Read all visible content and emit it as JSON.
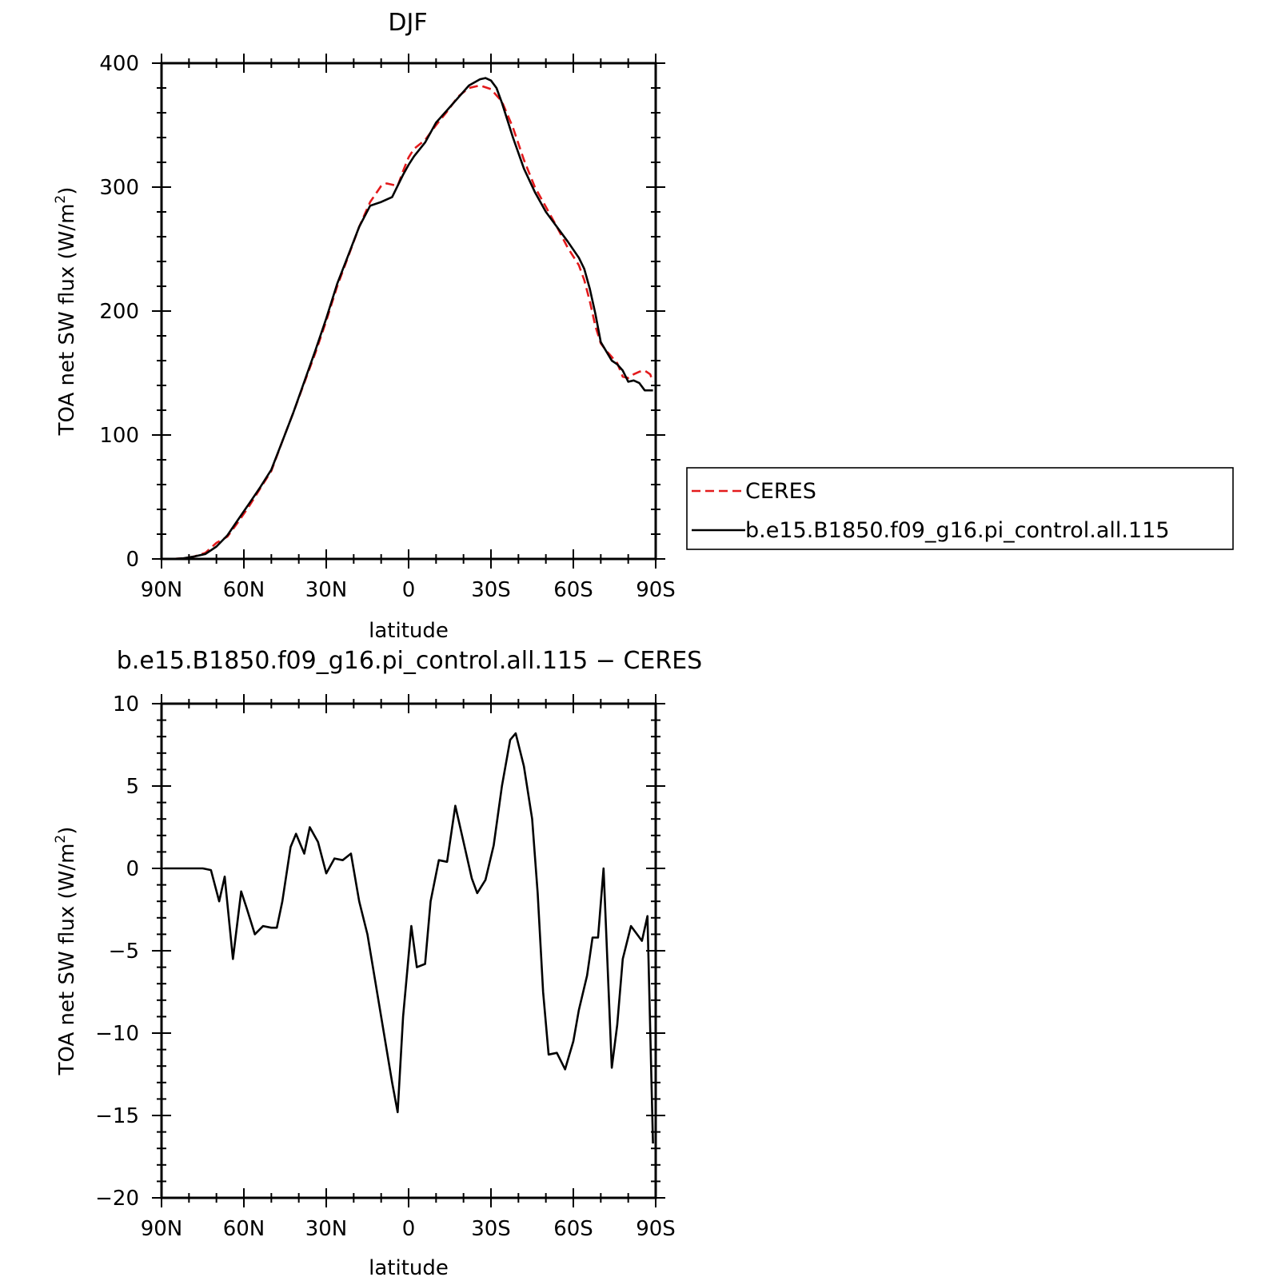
{
  "chart_data": [
    {
      "type": "line",
      "title": "DJF",
      "xlabel": "latitude",
      "ylabel": "TOA net SW flux (W/m²)",
      "ylabel_parts": {
        "main": "TOA net SW flux (W/m",
        "sup": "2",
        "close": ")"
      },
      "x_direction": "north-to-south",
      "xlim": [
        90,
        -90
      ],
      "ylim": [
        0,
        400
      ],
      "xticks": [
        90,
        60,
        30,
        0,
        -30,
        -60,
        -90
      ],
      "xtick_labels": [
        "90N",
        "60N",
        "30N",
        "0",
        "30S",
        "60S",
        "90S"
      ],
      "yticks": [
        0,
        100,
        200,
        300,
        400
      ],
      "ytick_labels": [
        "0",
        "100",
        "200",
        "300",
        "400"
      ],
      "grid": false,
      "legend_position": "outside-right",
      "series": [
        {
          "name": "CERES",
          "color": "#e31a1c",
          "dash": "dashed",
          "x": [
            90,
            86,
            82,
            78,
            74,
            70,
            66,
            62,
            58,
            54,
            50,
            46,
            42,
            38,
            34,
            30,
            26,
            22,
            18,
            14,
            10,
            8,
            4,
            2,
            0,
            -2,
            -6,
            -10,
            -14,
            -18,
            -22,
            -26,
            -30,
            -34,
            -38,
            -42,
            -46,
            -50,
            -54,
            -58,
            -62,
            -64,
            -66,
            -68,
            -70,
            -72,
            -76,
            -78,
            -80,
            -82,
            -84,
            -86,
            -88,
            -89
          ],
          "values": [
            0,
            0,
            0.5,
            2,
            5,
            13,
            18,
            30,
            43,
            57,
            71,
            95,
            118,
            142,
            166,
            192,
            220,
            244,
            268,
            288,
            301,
            303,
            301,
            313,
            324,
            331,
            338,
            350,
            361,
            373,
            380,
            382,
            379,
            369,
            348,
            322,
            300,
            284,
            268,
            251,
            237,
            225,
            208,
            188,
            174,
            168,
            158,
            147,
            146,
            149,
            151,
            152,
            149,
            143
          ]
        },
        {
          "name": "b.e15.B1850.f09_g16.pi_control.all.115",
          "color": "#000000",
          "dash": "solid",
          "x": [
            90,
            86,
            82,
            78,
            74,
            70,
            66,
            62,
            58,
            54,
            50,
            46,
            42,
            38,
            34,
            30,
            26,
            22,
            18,
            14,
            10,
            6,
            2,
            0,
            -2,
            -6,
            -10,
            -14,
            -18,
            -22,
            -26,
            -28,
            -30,
            -32,
            -34,
            -38,
            -42,
            -46,
            -50,
            -54,
            -58,
            -62,
            -64,
            -66,
            -68,
            -70,
            -74,
            -76,
            -78,
            -80,
            -82,
            -84,
            -86,
            -88,
            -89
          ],
          "values": [
            0,
            0,
            0.5,
            2,
            4,
            10,
            19,
            32,
            45,
            58,
            72,
            95,
            118,
            143,
            168,
            194,
            222,
            245,
            268,
            285,
            288,
            292,
            310,
            318,
            325,
            336,
            352,
            362,
            372,
            382,
            387,
            388,
            386,
            380,
            368,
            340,
            315,
            296,
            280,
            268,
            256,
            243,
            234,
            218,
            198,
            175,
            160,
            157,
            152,
            143,
            144,
            142,
            136,
            136,
            136
          ]
        }
      ]
    },
    {
      "type": "line",
      "title": "b.e15.B1850.f09_g16.pi_control.all.115 − CERES",
      "xlabel": "latitude",
      "ylabel": "TOA net SW flux (W/m²)",
      "ylabel_parts": {
        "main": "TOA net SW flux (W/m",
        "sup": "2",
        "close": ")"
      },
      "x_direction": "north-to-south",
      "xlim": [
        90,
        -90
      ],
      "ylim": [
        -20,
        10
      ],
      "xticks": [
        90,
        60,
        30,
        0,
        -30,
        -60,
        -90
      ],
      "xtick_labels": [
        "90N",
        "60N",
        "30N",
        "0",
        "30S",
        "60S",
        "90S"
      ],
      "yticks": [
        -20,
        -15,
        -10,
        -5,
        0,
        5,
        10
      ],
      "ytick_labels": [
        "−20",
        "−15",
        "−10",
        "−5",
        "0",
        "5",
        "10"
      ],
      "grid": false,
      "series": [
        {
          "color": "#000000",
          "dash": "solid",
          "x": [
            89,
            86,
            83,
            80,
            77,
            75,
            72,
            69,
            67,
            64,
            61,
            59,
            56,
            53,
            50,
            48,
            46,
            43,
            41,
            38,
            36,
            33,
            30,
            27,
            24,
            21,
            18,
            15,
            12,
            9,
            6,
            4,
            2,
            -1,
            -3,
            -6,
            -8,
            -11,
            -14,
            -17,
            -20,
            -23,
            -25,
            -28,
            -31,
            -34,
            -37,
            -39,
            -42,
            -45,
            -47,
            -49,
            -51,
            -54,
            -57,
            -60,
            -62,
            -65,
            -67,
            -69,
            -71,
            -74,
            -76,
            -78,
            -81,
            -85,
            -87,
            -89
          ],
          "values": [
            0,
            0,
            0,
            0,
            0,
            0,
            -0.1,
            -2,
            -0.5,
            -5.5,
            -1.4,
            -2.4,
            -4,
            -3.5,
            -3.6,
            -3.6,
            -2,
            1.3,
            2.1,
            0.9,
            2.5,
            1.6,
            -0.3,
            0.6,
            0.5,
            0.9,
            -2,
            -4,
            -7,
            -10,
            -13,
            -14.8,
            -9,
            -3.5,
            -6,
            -5.8,
            -2,
            0.5,
            0.4,
            3.8,
            1.6,
            -0.6,
            -1.5,
            -0.7,
            1.4,
            5,
            7.8,
            8.2,
            6.2,
            3,
            -1.5,
            -7.5,
            -11.3,
            -11.2,
            -12.2,
            -10.5,
            -8.6,
            -6.5,
            -4.2,
            -4.2,
            0,
            -12.1,
            -9.5,
            -5.5,
            -3.5,
            -4.4,
            -2.9,
            -16.7
          ]
        }
      ]
    }
  ]
}
